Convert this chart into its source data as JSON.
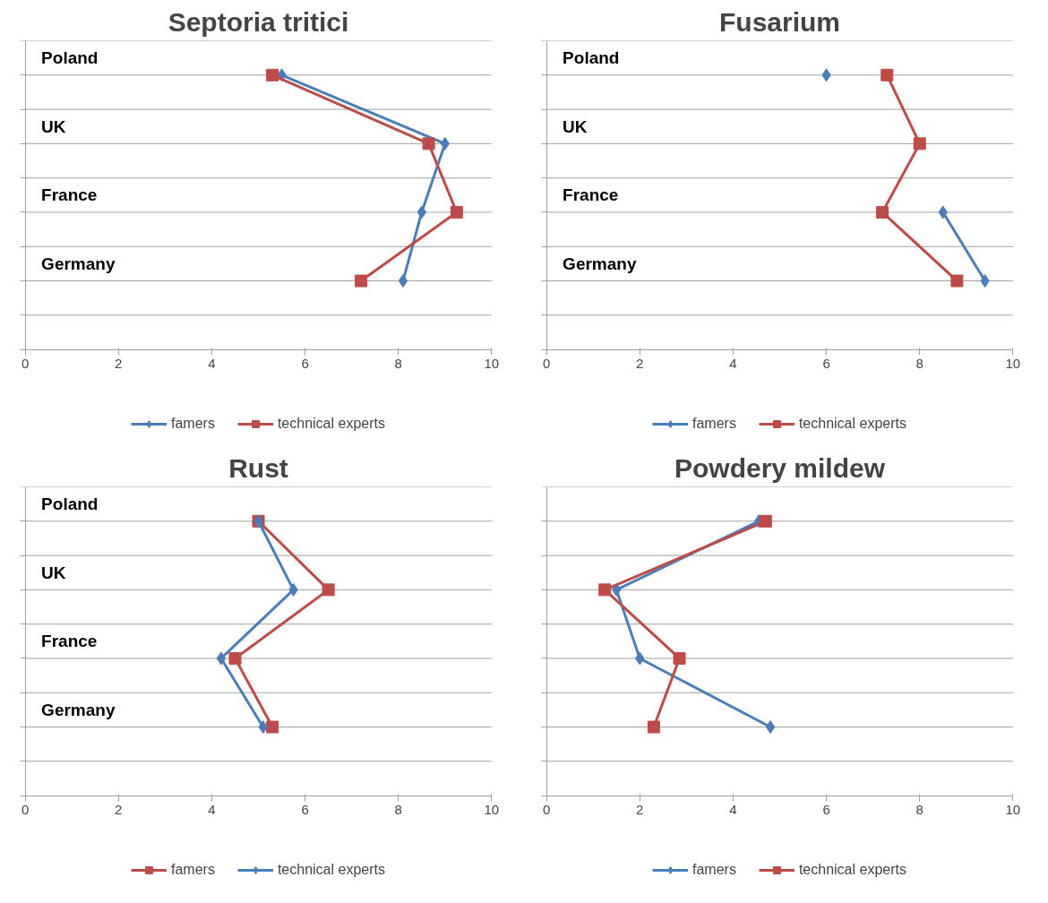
{
  "chart_data": [
    {
      "type": "line",
      "title": "Septoria tritici",
      "orientation": "horizontal",
      "categories": [
        "Poland",
        "UK",
        "France",
        "Germany"
      ],
      "xlim": [
        0,
        10
      ],
      "xticks": [
        0,
        2,
        4,
        6,
        8,
        10
      ],
      "grid": "y",
      "legend": "bottom",
      "series": [
        {
          "name": "famers",
          "color": "#4a7ebb",
          "marker": "diamond",
          "values": [
            5.5,
            9.0,
            8.5,
            8.1
          ]
        },
        {
          "name": "technical experts",
          "color": "#be4b48",
          "marker": "square",
          "values": [
            5.3,
            8.65,
            9.25,
            7.2
          ]
        }
      ]
    },
    {
      "type": "line",
      "title": "Fusarium",
      "orientation": "horizontal",
      "categories": [
        "Poland",
        "UK",
        "France",
        "Germany"
      ],
      "xlim": [
        0,
        10
      ],
      "xticks": [
        0,
        2,
        4,
        6,
        8,
        10
      ],
      "grid": "y",
      "legend": "bottom",
      "series": [
        {
          "name": "famers",
          "color": "#4a7ebb",
          "marker": "diamond",
          "values": [
            6.0,
            null,
            8.5,
            9.4
          ]
        },
        {
          "name": "technical experts",
          "color": "#be4b48",
          "marker": "square",
          "values": [
            7.3,
            8.0,
            7.2,
            8.8
          ]
        }
      ]
    },
    {
      "type": "line",
      "title": "Rust",
      "orientation": "horizontal",
      "categories": [
        "Poland",
        "UK",
        "France",
        "Germany"
      ],
      "xlim": [
        0,
        10
      ],
      "xticks": [
        0,
        2,
        4,
        6,
        8,
        10
      ],
      "grid": "y",
      "legend": "bottom",
      "series": [
        {
          "name": "famers",
          "color": "#be4b48",
          "marker": "square",
          "values": [
            5.0,
            6.5,
            4.5,
            5.3
          ]
        },
        {
          "name": "technical experts",
          "color": "#4a7ebb",
          "marker": "diamond",
          "values": [
            5.0,
            5.75,
            4.2,
            5.1
          ]
        }
      ]
    },
    {
      "type": "line",
      "title": "Powdery mildew",
      "orientation": "horizontal",
      "categories": [
        null,
        null,
        null,
        null
      ],
      "xlim": [
        0,
        10
      ],
      "xticks": [
        0,
        2,
        4,
        6,
        8,
        10
      ],
      "grid": "y",
      "legend": "bottom",
      "series": [
        {
          "name": "famers",
          "color": "#4a7ebb",
          "marker": "diamond",
          "values": [
            4.55,
            1.5,
            2.0,
            4.8
          ]
        },
        {
          "name": "technical experts",
          "color": "#be4b48",
          "marker": "square",
          "values": [
            4.7,
            1.25,
            2.85,
            2.3
          ]
        }
      ]
    }
  ]
}
